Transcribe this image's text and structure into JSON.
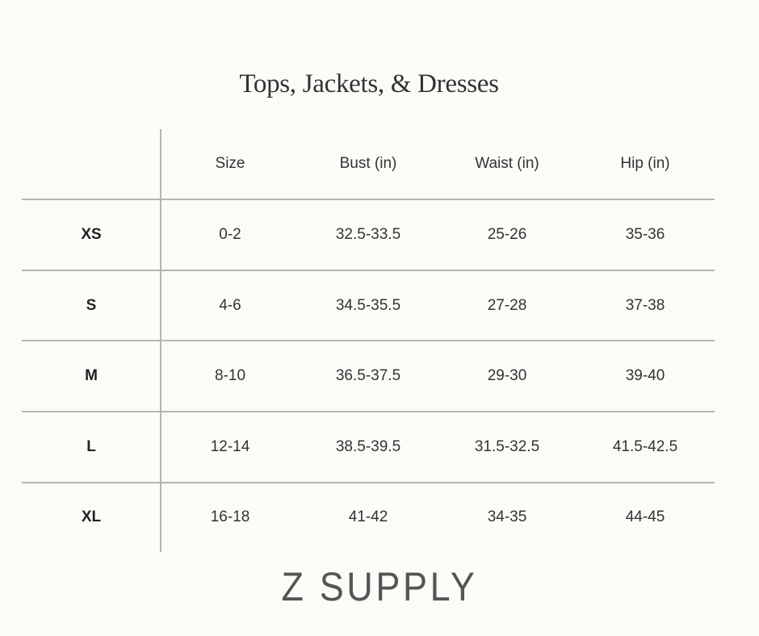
{
  "title": "Tops, Jackets, & Dresses",
  "table": {
    "headers": [
      "",
      "Size",
      "Bust (in)",
      "Waist (in)",
      "Hip (in)"
    ],
    "rows": [
      {
        "label": "XS",
        "size": "0-2",
        "bust": "32.5-33.5",
        "waist": "25-26",
        "hip": "35-36"
      },
      {
        "label": "S",
        "size": "4-6",
        "bust": "34.5-35.5",
        "waist": "27-28",
        "hip": "37-38"
      },
      {
        "label": "M",
        "size": "8-10",
        "bust": "36.5-37.5",
        "waist": "29-30",
        "hip": "39-40"
      },
      {
        "label": "L",
        "size": "12-14",
        "bust": "38.5-39.5",
        "waist": "31.5-32.5",
        "hip": "41.5-42.5"
      },
      {
        "label": "XL",
        "size": "16-18",
        "bust": "41-42",
        "waist": "34-35",
        "hip": "44-45"
      }
    ]
  },
  "logo": "Z SUPPLY",
  "colors": {
    "background": "#fdfbf8",
    "rule": "#b5b5b5",
    "text": "#333333"
  }
}
